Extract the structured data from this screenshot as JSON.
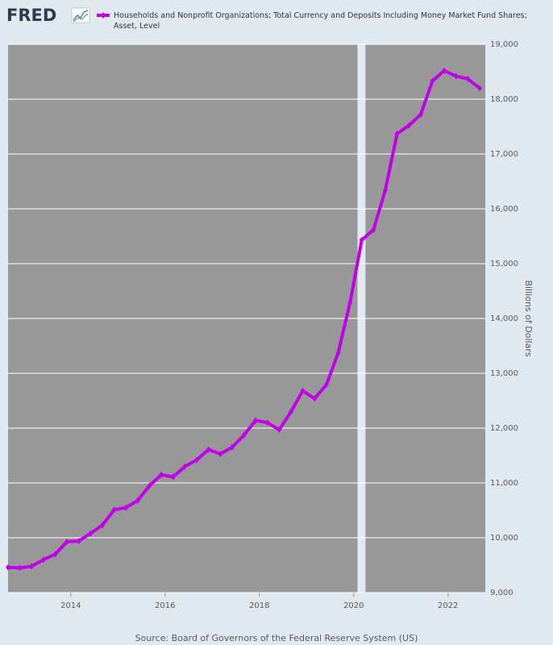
{
  "chart_data": {
    "type": "line",
    "logo": "FRED",
    "source": "Source: Board of Governors of the Federal Reserve System (US)",
    "ylabel": "Billions of Dollars",
    "xlim": [
      2012.67,
      2022.79
    ],
    "xticks": [
      2014,
      2016,
      2018,
      2020,
      2022
    ],
    "ylim": [
      9000,
      19000
    ],
    "yticks": [
      {
        "value": 9000,
        "label": "9,000"
      },
      {
        "value": 10000,
        "label": "10,000"
      },
      {
        "value": 11000,
        "label": "11,000"
      },
      {
        "value": 12000,
        "label": "12,000"
      },
      {
        "value": 13000,
        "label": "13,000"
      },
      {
        "value": 14000,
        "label": "14,000"
      },
      {
        "value": 15000,
        "label": "15,000"
      },
      {
        "value": 16000,
        "label": "16,000"
      },
      {
        "value": 17000,
        "label": "17,000"
      },
      {
        "value": 18000,
        "label": "18,000"
      },
      {
        "value": 19000,
        "label": "19,000"
      }
    ],
    "grid": true,
    "recessions": [
      [
        2020.08,
        2020.25
      ]
    ],
    "x": [
      2012.67,
      2012.92,
      2013.17,
      2013.42,
      2013.67,
      2013.92,
      2014.17,
      2014.42,
      2014.67,
      2014.92,
      2015.17,
      2015.42,
      2015.67,
      2015.92,
      2016.17,
      2016.42,
      2016.67,
      2016.92,
      2017.17,
      2017.42,
      2017.67,
      2017.92,
      2018.17,
      2018.42,
      2018.67,
      2018.92,
      2019.17,
      2019.42,
      2019.67,
      2019.92,
      2020.17,
      2020.42,
      2020.67,
      2020.92,
      2021.17,
      2021.42,
      2021.67,
      2021.92,
      2022.17,
      2022.42,
      2022.67
    ],
    "series": [
      {
        "name": "Households and Nonprofit Organizations; Total Currency and Deposits Including Money Market Fund Shares; Asset, Level",
        "color": "#c000e8",
        "values": [
          9460,
          9450,
          9480,
          9600,
          9700,
          9930,
          9940,
          10080,
          10230,
          10510,
          10550,
          10680,
          10950,
          11150,
          11110,
          11300,
          11420,
          11610,
          11530,
          11650,
          11870,
          12140,
          12100,
          11970,
          12300,
          12680,
          12540,
          12790,
          13370,
          14280,
          15430,
          15620,
          16340,
          17370,
          17520,
          17720,
          18330,
          18520,
          18420,
          18370,
          18200
        ]
      }
    ]
  }
}
